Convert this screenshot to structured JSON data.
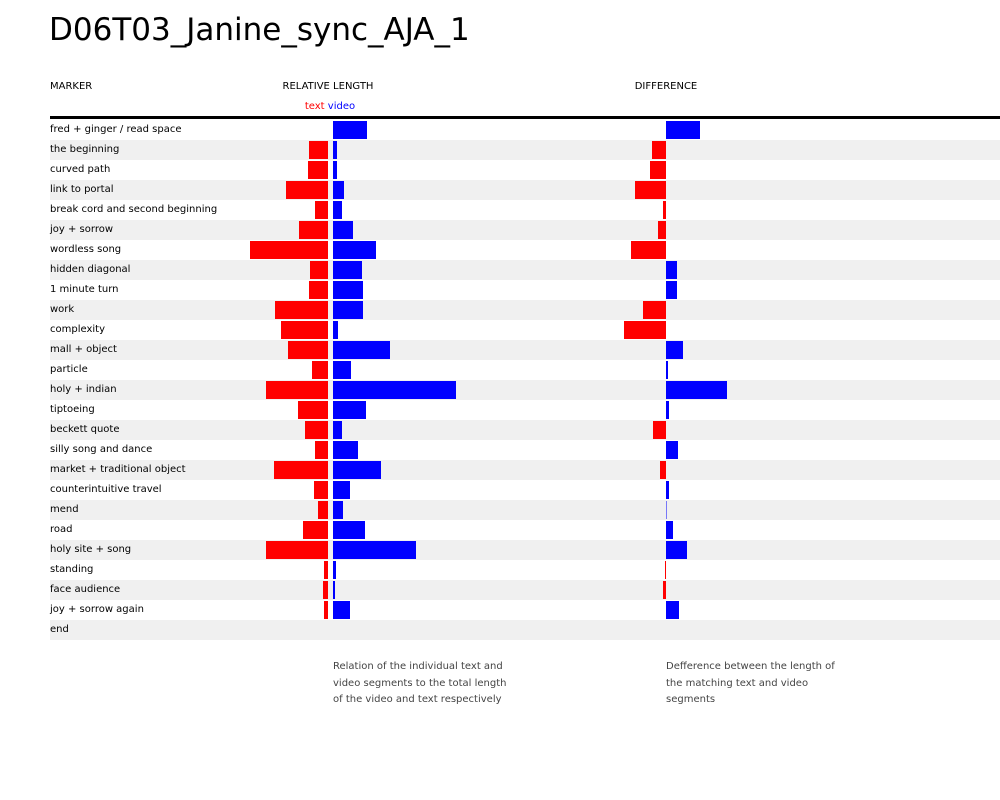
{
  "title": "D06T03_Janine_sync_AJA_1",
  "headers": {
    "marker": "MARKER",
    "relative_length": "RELATIVE LENGTH",
    "difference": "DIFFERENCE"
  },
  "legend": {
    "text": "text",
    "video": "video"
  },
  "notes": {
    "relative": "Relation of the individual text and video segments to the total length of the video and text respectively",
    "difference": "Defference between the length of the matching text and video segments"
  },
  "colors": {
    "text": "#ff0000",
    "video": "#0000ff",
    "alt_row": "#f0f0f0"
  },
  "chart_data": {
    "type": "bar",
    "categories": [
      "fred + ginger / read space",
      "the beginning",
      "curved path",
      "link to portal",
      "break cord and second beginning",
      "joy + sorrow",
      "wordless song",
      "hidden diagonal",
      "1 minute turn",
      "work",
      "complexity",
      "mall + object",
      "particle",
      "holy + indian",
      "tiptoeing",
      "beckett quote",
      "silly song and dance",
      "market + traditional object",
      "counterintuitive travel",
      "mend",
      "road",
      "holy site + song",
      "standing",
      "face audience",
      "joy + sorrow again",
      "end"
    ],
    "series": [
      {
        "name": "text",
        "values": [
          0,
          19,
          20,
          42,
          13,
          29,
          78,
          18,
          19,
          53,
          47,
          40,
          16,
          62,
          30,
          23,
          13,
          54,
          14,
          10,
          25,
          62,
          4,
          5,
          4,
          0
        ]
      },
      {
        "name": "video",
        "values": [
          34,
          4,
          4,
          11,
          9,
          20,
          43,
          29,
          30,
          30,
          5,
          57,
          18,
          123,
          33,
          9,
          25,
          48,
          17,
          10,
          32,
          83,
          3,
          2,
          17,
          0
        ]
      },
      {
        "name": "difference",
        "values": [
          34,
          -14,
          -16,
          -31,
          -3,
          -8,
          -35,
          11,
          11,
          -23,
          -42,
          17,
          2,
          61,
          3,
          -13,
          12,
          -6,
          3,
          0.5,
          7,
          21,
          -1,
          -3,
          13,
          0
        ]
      }
    ]
  }
}
